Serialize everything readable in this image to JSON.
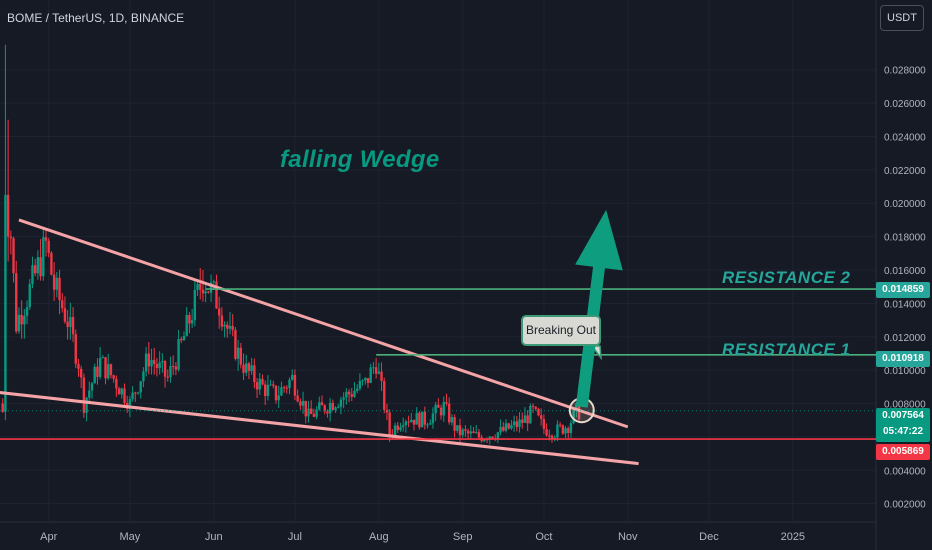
{
  "header": {
    "title": "BOME / TetherUS, 1D, BINANCE",
    "currency_button": "USDT"
  },
  "annotations": {
    "pattern_label": "falling Wedge",
    "resistance_2": "RESISTANCE 2",
    "resistance_1": "RESISTANCE 1",
    "callout": "Breaking Out"
  },
  "price_tags": {
    "resistance_2": "0.014859",
    "resistance_1": "0.010918",
    "current_price": "0.007564",
    "countdown": "05:47:22",
    "support": "0.005869"
  },
  "colors": {
    "background": "#161a25",
    "bullish": "#089981",
    "bearish": "#f23645",
    "wedge_lines": "#f4a3a6",
    "resistance_lines": "#4caf7a",
    "support_line": "#f23645",
    "arrow": "#0f9d80"
  },
  "chart_data": {
    "type": "candlestick",
    "symbol": "BOME / TetherUS",
    "interval": "1D",
    "exchange": "BINANCE",
    "x_tick_labels": [
      "Apr",
      "May",
      "Jun",
      "Jul",
      "Aug",
      "Sep",
      "Oct",
      "Nov",
      "Dec",
      "2025"
    ],
    "y_tick_labels": [
      "0.028000",
      "0.026000",
      "0.024000",
      "0.022000",
      "0.020000",
      "0.018000",
      "0.016000",
      "0.014000",
      "0.012000",
      "0.010000",
      "0.008000",
      "0.006000",
      "0.004000",
      "0.002000"
    ],
    "y_range": [
      0.0012,
      0.0305
    ],
    "x_range": [
      "2024-03-14",
      "2025-01-31"
    ],
    "close_path": [
      [
        "2024-03-16",
        0.0075
      ],
      [
        "2024-03-17",
        0.0208
      ],
      [
        "2024-03-20",
        0.0128
      ],
      [
        "2024-03-25",
        0.0148
      ],
      [
        "2024-03-31",
        0.0175
      ],
      [
        "2024-04-03",
        0.015
      ],
      [
        "2024-04-08",
        0.013
      ],
      [
        "2024-04-12",
        0.0105
      ],
      [
        "2024-04-14",
        0.008
      ],
      [
        "2024-04-20",
        0.0105
      ],
      [
        "2024-04-25",
        0.0095
      ],
      [
        "2024-05-01",
        0.008
      ],
      [
        "2024-05-08",
        0.0108
      ],
      [
        "2024-05-15",
        0.0095
      ],
      [
        "2024-05-20",
        0.0115
      ],
      [
        "2024-05-25",
        0.014
      ],
      [
        "2024-05-28",
        0.0155
      ],
      [
        "2024-06-03",
        0.014
      ],
      [
        "2024-06-07",
        0.012
      ],
      [
        "2024-06-13",
        0.01
      ],
      [
        "2024-06-19",
        0.009
      ],
      [
        "2024-06-24",
        0.0085
      ],
      [
        "2024-06-30",
        0.0095
      ],
      [
        "2024-07-06",
        0.0072
      ],
      [
        "2024-07-14",
        0.008
      ],
      [
        "2024-07-20",
        0.0085
      ],
      [
        "2024-07-27",
        0.0092
      ],
      [
        "2024-07-31",
        0.0105
      ],
      [
        "2024-08-05",
        0.0062
      ],
      [
        "2024-08-10",
        0.0072
      ],
      [
        "2024-08-18",
        0.007
      ],
      [
        "2024-08-25",
        0.0078
      ],
      [
        "2024-08-30",
        0.0063
      ],
      [
        "2024-09-07",
        0.006
      ],
      [
        "2024-09-15",
        0.0063
      ],
      [
        "2024-09-22",
        0.0068
      ],
      [
        "2024-09-27",
        0.0075
      ],
      [
        "2024-10-01",
        0.0065
      ],
      [
        "2024-10-05",
        0.0063
      ],
      [
        "2024-10-10",
        0.0067
      ],
      [
        "2024-10-13",
        0.0075
      ]
    ],
    "drawings": {
      "wedge_upper": [
        [
          "2024-03-21",
          0.019
        ],
        [
          "2024-11-01",
          0.0066
        ]
      ],
      "wedge_lower": [
        [
          "2024-03-06",
          0.0088
        ],
        [
          "2024-11-05",
          0.0044
        ]
      ],
      "resistance_2": {
        "price": 0.014859,
        "from": "2024-05-29"
      },
      "resistance_1": {
        "price": 0.010918,
        "from": "2024-07-31"
      },
      "support": {
        "price": 0.005869
      },
      "breakout_arrow": [
        [
          "2024-10-15",
          0.0078
        ],
        [
          "2024-10-24",
          0.0196
        ]
      ]
    }
  }
}
